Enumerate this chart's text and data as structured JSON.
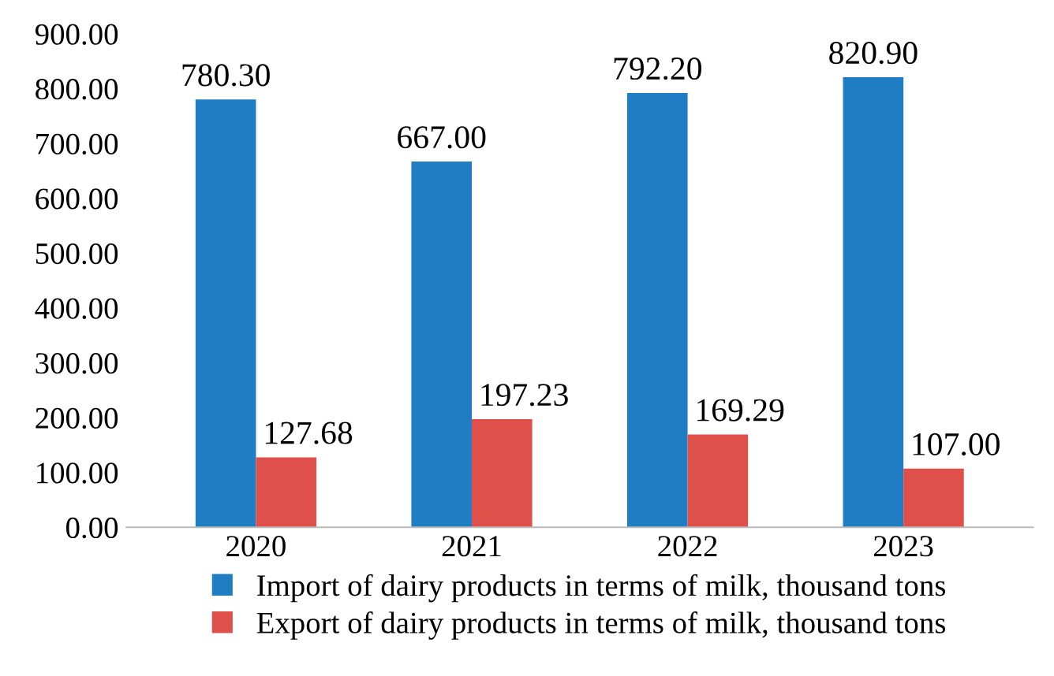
{
  "chart_data": {
    "type": "bar",
    "categories": [
      "2020",
      "2021",
      "2022",
      "2023"
    ],
    "series": [
      {
        "name": "Import of dairy products in terms of milk, thousand tons",
        "color": "#1f7dc4",
        "values": [
          780.3,
          667.0,
          792.2,
          820.9
        ],
        "value_labels": [
          "780.30",
          "667.00",
          "792.20",
          "820.90"
        ]
      },
      {
        "name": "Export of dairy products in terms of milk, thousand tons",
        "color": "#e0504a",
        "values": [
          127.68,
          197.23,
          169.29,
          107.0
        ],
        "value_labels": [
          "127.68",
          "197.23",
          "169.29",
          "107.00"
        ]
      }
    ],
    "ylim": [
      0,
      900
    ],
    "yticks": [
      {
        "value": 0,
        "label": "0.00"
      },
      {
        "value": 100,
        "label": "100.00"
      },
      {
        "value": 200,
        "label": "200.00"
      },
      {
        "value": 300,
        "label": "300.00"
      },
      {
        "value": 400,
        "label": "400.00"
      },
      {
        "value": 500,
        "label": "500.00"
      },
      {
        "value": 600,
        "label": "600.00"
      },
      {
        "value": 700,
        "label": "700.00"
      },
      {
        "value": 800,
        "label": "800.00"
      },
      {
        "value": 900,
        "label": "900.00"
      }
    ],
    "grid": false,
    "legend": "bottom"
  }
}
